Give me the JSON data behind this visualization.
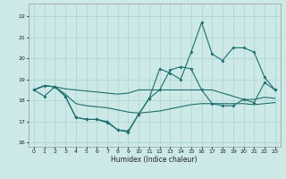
{
  "xlabel": "Humidex (Indice chaleur)",
  "bg_color": "#cce9e8",
  "grid_color": "#aad4d2",
  "line_color": "#1e6e6e",
  "xlim": [
    -0.5,
    23.5
  ],
  "ylim": [
    15.8,
    22.6
  ],
  "yticks": [
    16,
    17,
    18,
    19,
    20,
    21,
    22
  ],
  "xticks": [
    0,
    1,
    2,
    3,
    4,
    5,
    6,
    7,
    8,
    9,
    10,
    11,
    12,
    13,
    14,
    15,
    16,
    17,
    18,
    19,
    20,
    21,
    22,
    23
  ],
  "line_top": [
    18.5,
    18.7,
    18.65,
    18.55,
    18.5,
    18.45,
    18.4,
    18.35,
    18.3,
    18.35,
    18.5,
    18.5,
    18.5,
    18.5,
    18.5,
    18.5,
    18.5,
    18.5,
    18.35,
    18.2,
    18.05,
    18.05,
    18.15,
    18.1
  ],
  "line_mid": [
    18.5,
    18.7,
    18.65,
    18.3,
    17.85,
    17.75,
    17.7,
    17.65,
    17.55,
    17.45,
    17.4,
    17.45,
    17.5,
    17.6,
    17.7,
    17.8,
    17.85,
    17.85,
    17.85,
    17.85,
    17.85,
    17.8,
    17.85,
    17.9
  ],
  "line_low_marked": [
    18.5,
    18.7,
    18.65,
    18.2,
    17.2,
    17.1,
    17.1,
    16.95,
    16.6,
    16.55,
    17.35,
    18.1,
    18.5,
    19.45,
    19.6,
    19.5,
    18.5,
    17.85,
    17.75,
    17.75,
    18.05,
    17.9,
    18.85,
    18.5
  ],
  "line_high_marked": [
    18.5,
    18.2,
    18.65,
    18.2,
    17.2,
    17.1,
    17.1,
    17.0,
    16.6,
    16.5,
    17.35,
    18.1,
    19.5,
    19.3,
    19.0,
    20.3,
    21.7,
    20.2,
    19.9,
    20.5,
    20.5,
    20.3,
    19.1,
    18.5
  ]
}
